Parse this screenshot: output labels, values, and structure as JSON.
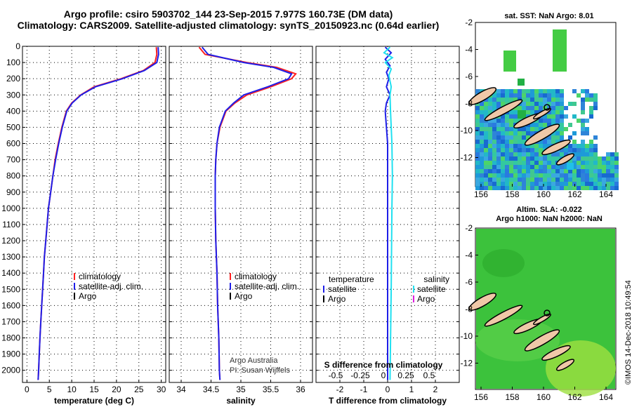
{
  "title_line1": "Argo profile: csiro 5903702_144 23-Sep-2015 7.977S 160.73E (DM data)",
  "title_line2": "Climatology: CARS2009. Satellite-adjusted climatology: synTS_20150923.nc (0.64d earlier)",
  "colors": {
    "climatology": "#ff2020",
    "satellite": "#1e1ee8",
    "argo": "#000000",
    "sat_salinity": "#20e0f0",
    "argo_salinity": "#e020e0"
  },
  "credit": {
    "line1": "Argo Australia",
    "line2": "PI: Susan Wijffels"
  },
  "imos": "©IMOS 14-Dec-2018 10:49:54",
  "panels": {
    "temperature": {
      "xlabel": "temperature (deg C)",
      "legend": [
        "climatology",
        "satellite-adj. clim.",
        "Argo"
      ]
    },
    "salinity": {
      "xlabel": "salinity",
      "legend": [
        "climatology",
        "satellite-adj. clim.",
        "Argo"
      ]
    },
    "difference": {
      "xlabel": "T difference from climatology",
      "top_label": "S difference from climatology",
      "legend_left_title": "temperature",
      "legend_left": [
        "satellite",
        "Argo"
      ],
      "legend_right_title": "salinity",
      "legend_right": [
        "satellite",
        "Argo"
      ]
    }
  },
  "maps": {
    "sst": {
      "title": "sat. SST: NaN Argo: 8.01",
      "x_ticks": [
        "156",
        "158",
        "160",
        "162",
        "164"
      ],
      "y_ticks": [
        "-2",
        "-4",
        "-6",
        "-8",
        "-10",
        "-12"
      ]
    },
    "sla": {
      "title_line1": "Altim. SLA: -0.022",
      "title_line2": "Argo h1000: NaN h2000: NaN",
      "x_ticks": [
        "156",
        "158",
        "160",
        "162",
        "164"
      ],
      "y_ticks": [
        "-2",
        "-4",
        "-6",
        "-8",
        "-10",
        "-12"
      ]
    }
  },
  "chart_data": [
    {
      "type": "line",
      "title": "",
      "xlabel": "temperature (deg C)",
      "ylabel": "",
      "xlim": [
        -1,
        31
      ],
      "ylim": [
        2075,
        0
      ],
      "x_ticks": [
        0,
        5,
        10,
        15,
        20,
        25,
        30
      ],
      "y_ticks": [
        0,
        100,
        200,
        300,
        400,
        500,
        600,
        700,
        800,
        900,
        1000,
        1100,
        1200,
        1300,
        1400,
        1500,
        1600,
        1700,
        1800,
        1900,
        2000
      ],
      "grid": true,
      "legend": "lower-right",
      "series": [
        {
          "name": "climatology",
          "points": [
            [
              28.9,
              5
            ],
            [
              29.0,
              50
            ],
            [
              28.6,
              100
            ],
            [
              26,
              150
            ],
            [
              21,
              200
            ],
            [
              15,
              250
            ],
            [
              12,
              300
            ],
            [
              10,
              350
            ],
            [
              8.8,
              400
            ],
            [
              7.8,
              500
            ],
            [
              7,
              600
            ],
            [
              6.3,
              700
            ],
            [
              5.8,
              800
            ],
            [
              5.3,
              900
            ],
            [
              4.8,
              1000
            ],
            [
              4.5,
              1100
            ],
            [
              4.2,
              1200
            ],
            [
              3.9,
              1300
            ],
            [
              3.7,
              1400
            ],
            [
              3.5,
              1500
            ],
            [
              3.3,
              1600
            ],
            [
              3.1,
              1700
            ],
            [
              2.9,
              1800
            ],
            [
              2.75,
              1900
            ],
            [
              2.6,
              2000
            ],
            [
              2.5,
              2060
            ]
          ]
        },
        {
          "name": "satellite-adj. clim.",
          "points": [
            [
              29.3,
              5
            ],
            [
              29.4,
              50
            ],
            [
              29.0,
              100
            ],
            [
              26.2,
              150
            ],
            [
              21.3,
              200
            ],
            [
              15.3,
              250
            ],
            [
              12.1,
              300
            ],
            [
              10.1,
              350
            ],
            [
              8.9,
              400
            ],
            [
              7.9,
              500
            ],
            [
              7.1,
              600
            ],
            [
              6.4,
              700
            ],
            [
              5.8,
              800
            ],
            [
              5.3,
              900
            ],
            [
              4.8,
              1000
            ],
            [
              4.5,
              1100
            ],
            [
              4.2,
              1200
            ],
            [
              3.9,
              1300
            ],
            [
              3.7,
              1400
            ],
            [
              3.5,
              1500
            ],
            [
              3.3,
              1600
            ],
            [
              3.1,
              1700
            ],
            [
              2.9,
              1800
            ],
            [
              2.75,
              1900
            ],
            [
              2.6,
              2000
            ],
            [
              2.5,
              2060
            ]
          ]
        }
      ]
    },
    {
      "type": "line",
      "title": "",
      "xlabel": "salinity",
      "ylabel": "",
      "xlim": [
        33.8,
        36.2
      ],
      "ylim": [
        2075,
        0
      ],
      "x_ticks": [
        34,
        34.5,
        35,
        35.5,
        36
      ],
      "grid": true,
      "legend": "lower-right",
      "series": [
        {
          "name": "climatology",
          "points": [
            [
              34.3,
              5
            ],
            [
              34.4,
              50
            ],
            [
              35.1,
              100
            ],
            [
              35.6,
              130
            ],
            [
              35.92,
              170
            ],
            [
              35.85,
              200
            ],
            [
              35.5,
              250
            ],
            [
              35.1,
              300
            ],
            [
              34.9,
              350
            ],
            [
              34.75,
              400
            ],
            [
              34.65,
              500
            ],
            [
              34.6,
              600
            ],
            [
              34.58,
              700
            ],
            [
              34.57,
              800
            ],
            [
              34.57,
              1000
            ],
            [
              34.58,
              1200
            ],
            [
              34.6,
              1400
            ],
            [
              34.61,
              1600
            ],
            [
              34.63,
              1800
            ],
            [
              34.64,
              2000
            ],
            [
              34.65,
              2060
            ]
          ]
        },
        {
          "name": "satellite-adj. clim.",
          "points": [
            [
              34.35,
              5
            ],
            [
              34.45,
              50
            ],
            [
              35.05,
              100
            ],
            [
              35.55,
              130
            ],
            [
              35.85,
              170
            ],
            [
              35.8,
              200
            ],
            [
              35.45,
              250
            ],
            [
              35.05,
              300
            ],
            [
              34.88,
              350
            ],
            [
              34.74,
              400
            ],
            [
              34.64,
              500
            ],
            [
              34.6,
              600
            ],
            [
              34.58,
              700
            ],
            [
              34.57,
              800
            ],
            [
              34.57,
              1000
            ],
            [
              34.58,
              1200
            ],
            [
              34.6,
              1400
            ],
            [
              34.61,
              1600
            ],
            [
              34.63,
              1800
            ],
            [
              34.64,
              2000
            ],
            [
              34.65,
              2060
            ]
          ]
        }
      ]
    },
    {
      "type": "line",
      "title": "",
      "xlabel": "T difference from climatology",
      "ylabel": "",
      "xlim": [
        -3,
        3
      ],
      "ylim": [
        2075,
        0
      ],
      "x_ticks": [
        -2,
        -1,
        0,
        1,
        2
      ],
      "top_axis_label": "S difference from climatology",
      "top_ticks": [
        "-0.5",
        "-0.25",
        "0",
        "0.25",
        "0.5"
      ],
      "grid": true,
      "legend": "lower",
      "series": [
        {
          "name": "satellite",
          "points": [
            [
              -0.1,
              5
            ],
            [
              0.15,
              40
            ],
            [
              -0.1,
              80
            ],
            [
              0.1,
              120
            ],
            [
              -0.05,
              160
            ],
            [
              0.05,
              200
            ],
            [
              -0.05,
              250
            ],
            [
              0.1,
              300
            ],
            [
              -0.05,
              350
            ],
            [
              -0.1,
              400
            ],
            [
              -0.05,
              500
            ],
            [
              0,
              600
            ],
            [
              0,
              800
            ],
            [
              0,
              1200
            ],
            [
              0,
              1600
            ],
            [
              0,
              2060
            ]
          ]
        },
        {
          "name": "sal-satellite",
          "points": [
            [
              0.1,
              5
            ],
            [
              -0.15,
              40
            ],
            [
              0.2,
              70
            ],
            [
              -0.1,
              100
            ],
            [
              0.15,
              140
            ],
            [
              0.05,
              180
            ],
            [
              0.15,
              250
            ],
            [
              0.1,
              300
            ],
            [
              0.12,
              400
            ],
            [
              0.15,
              500
            ],
            [
              0.18,
              600
            ],
            [
              0.2,
              800
            ],
            [
              0.18,
              1000
            ],
            [
              0.15,
              1500
            ],
            [
              0.1,
              2060
            ]
          ]
        }
      ]
    }
  ]
}
